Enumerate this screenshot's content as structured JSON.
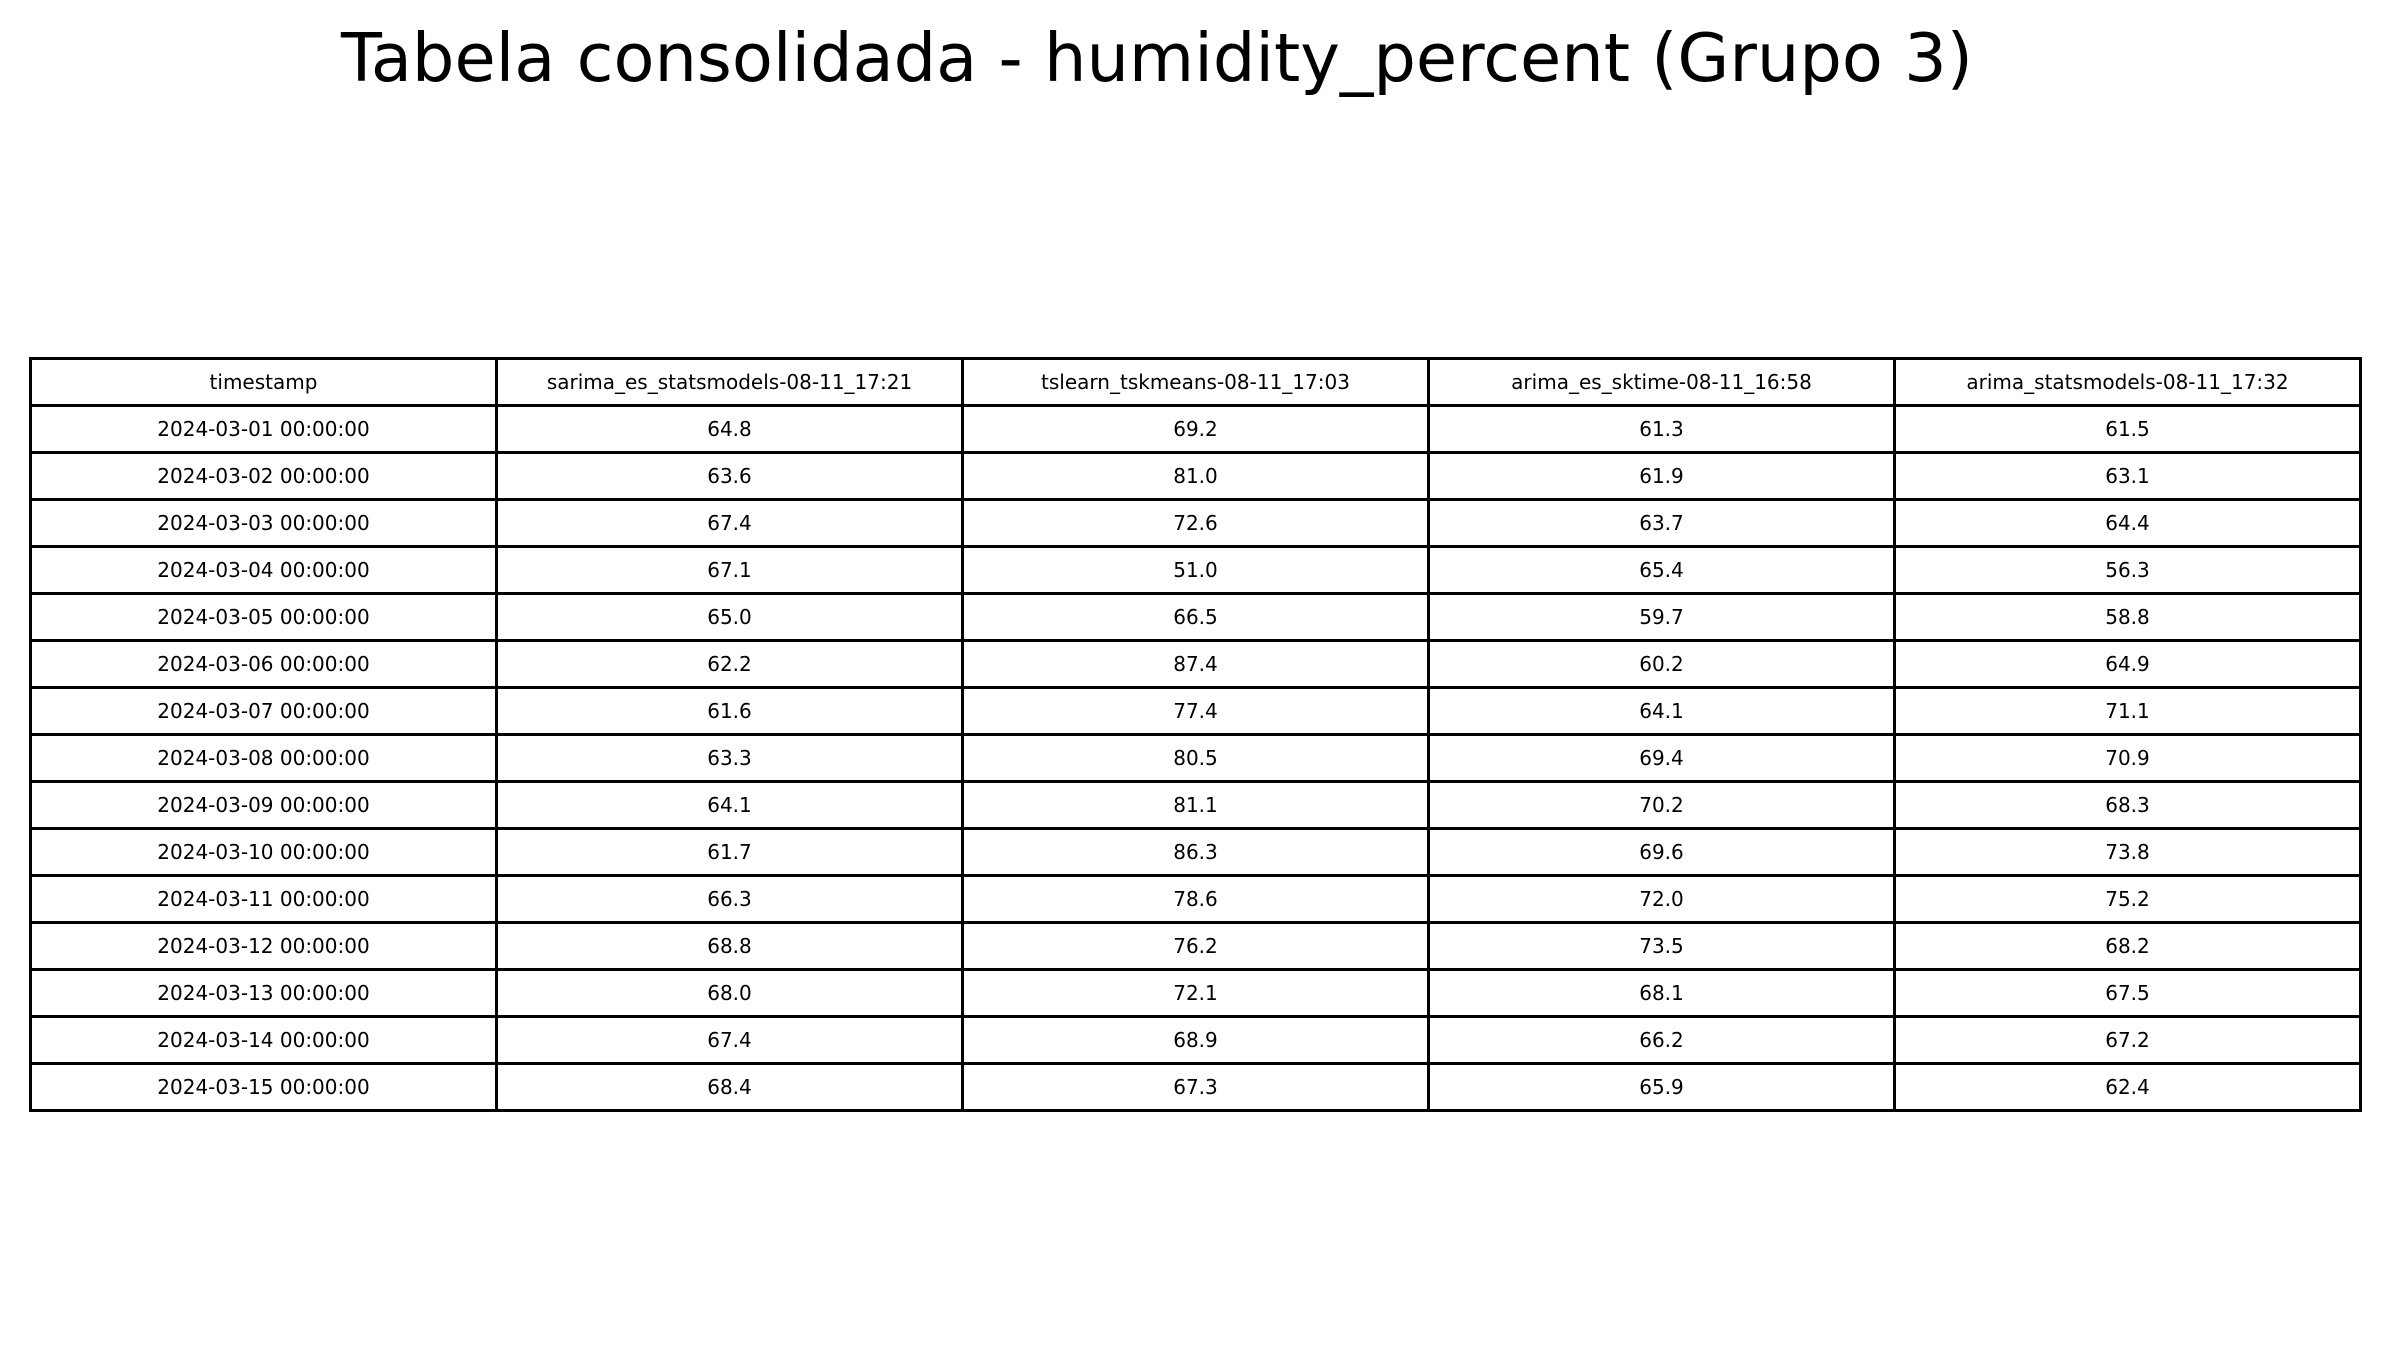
{
  "title": "Tabela consolidada - humidity_percent (Grupo 3)",
  "chart_data": {
    "type": "table",
    "title": "Tabela consolidada - humidity_percent (Grupo 3)",
    "columns": [
      "timestamp",
      "sarima_es_statsmodels-08-11_17:21",
      "tslearn_tskmeans-08-11_17:03",
      "arima_es_sktime-08-11_16:58",
      "arima_statsmodels-08-11_17:32"
    ],
    "rows": [
      [
        "2024-03-01 00:00:00",
        "64.8",
        "69.2",
        "61.3",
        "61.5"
      ],
      [
        "2024-03-02 00:00:00",
        "63.6",
        "81.0",
        "61.9",
        "63.1"
      ],
      [
        "2024-03-03 00:00:00",
        "67.4",
        "72.6",
        "63.7",
        "64.4"
      ],
      [
        "2024-03-04 00:00:00",
        "67.1",
        "51.0",
        "65.4",
        "56.3"
      ],
      [
        "2024-03-05 00:00:00",
        "65.0",
        "66.5",
        "59.7",
        "58.8"
      ],
      [
        "2024-03-06 00:00:00",
        "62.2",
        "87.4",
        "60.2",
        "64.9"
      ],
      [
        "2024-03-07 00:00:00",
        "61.6",
        "77.4",
        "64.1",
        "71.1"
      ],
      [
        "2024-03-08 00:00:00",
        "63.3",
        "80.5",
        "69.4",
        "70.9"
      ],
      [
        "2024-03-09 00:00:00",
        "64.1",
        "81.1",
        "70.2",
        "68.3"
      ],
      [
        "2024-03-10 00:00:00",
        "61.7",
        "86.3",
        "69.6",
        "73.8"
      ],
      [
        "2024-03-11 00:00:00",
        "66.3",
        "78.6",
        "72.0",
        "75.2"
      ],
      [
        "2024-03-12 00:00:00",
        "68.8",
        "76.2",
        "73.5",
        "68.2"
      ],
      [
        "2024-03-13 00:00:00",
        "68.0",
        "72.1",
        "68.1",
        "67.5"
      ],
      [
        "2024-03-14 00:00:00",
        "67.4",
        "68.9",
        "66.2",
        "67.2"
      ],
      [
        "2024-03-15 00:00:00",
        "68.4",
        "67.3",
        "65.9",
        "62.4"
      ]
    ]
  }
}
